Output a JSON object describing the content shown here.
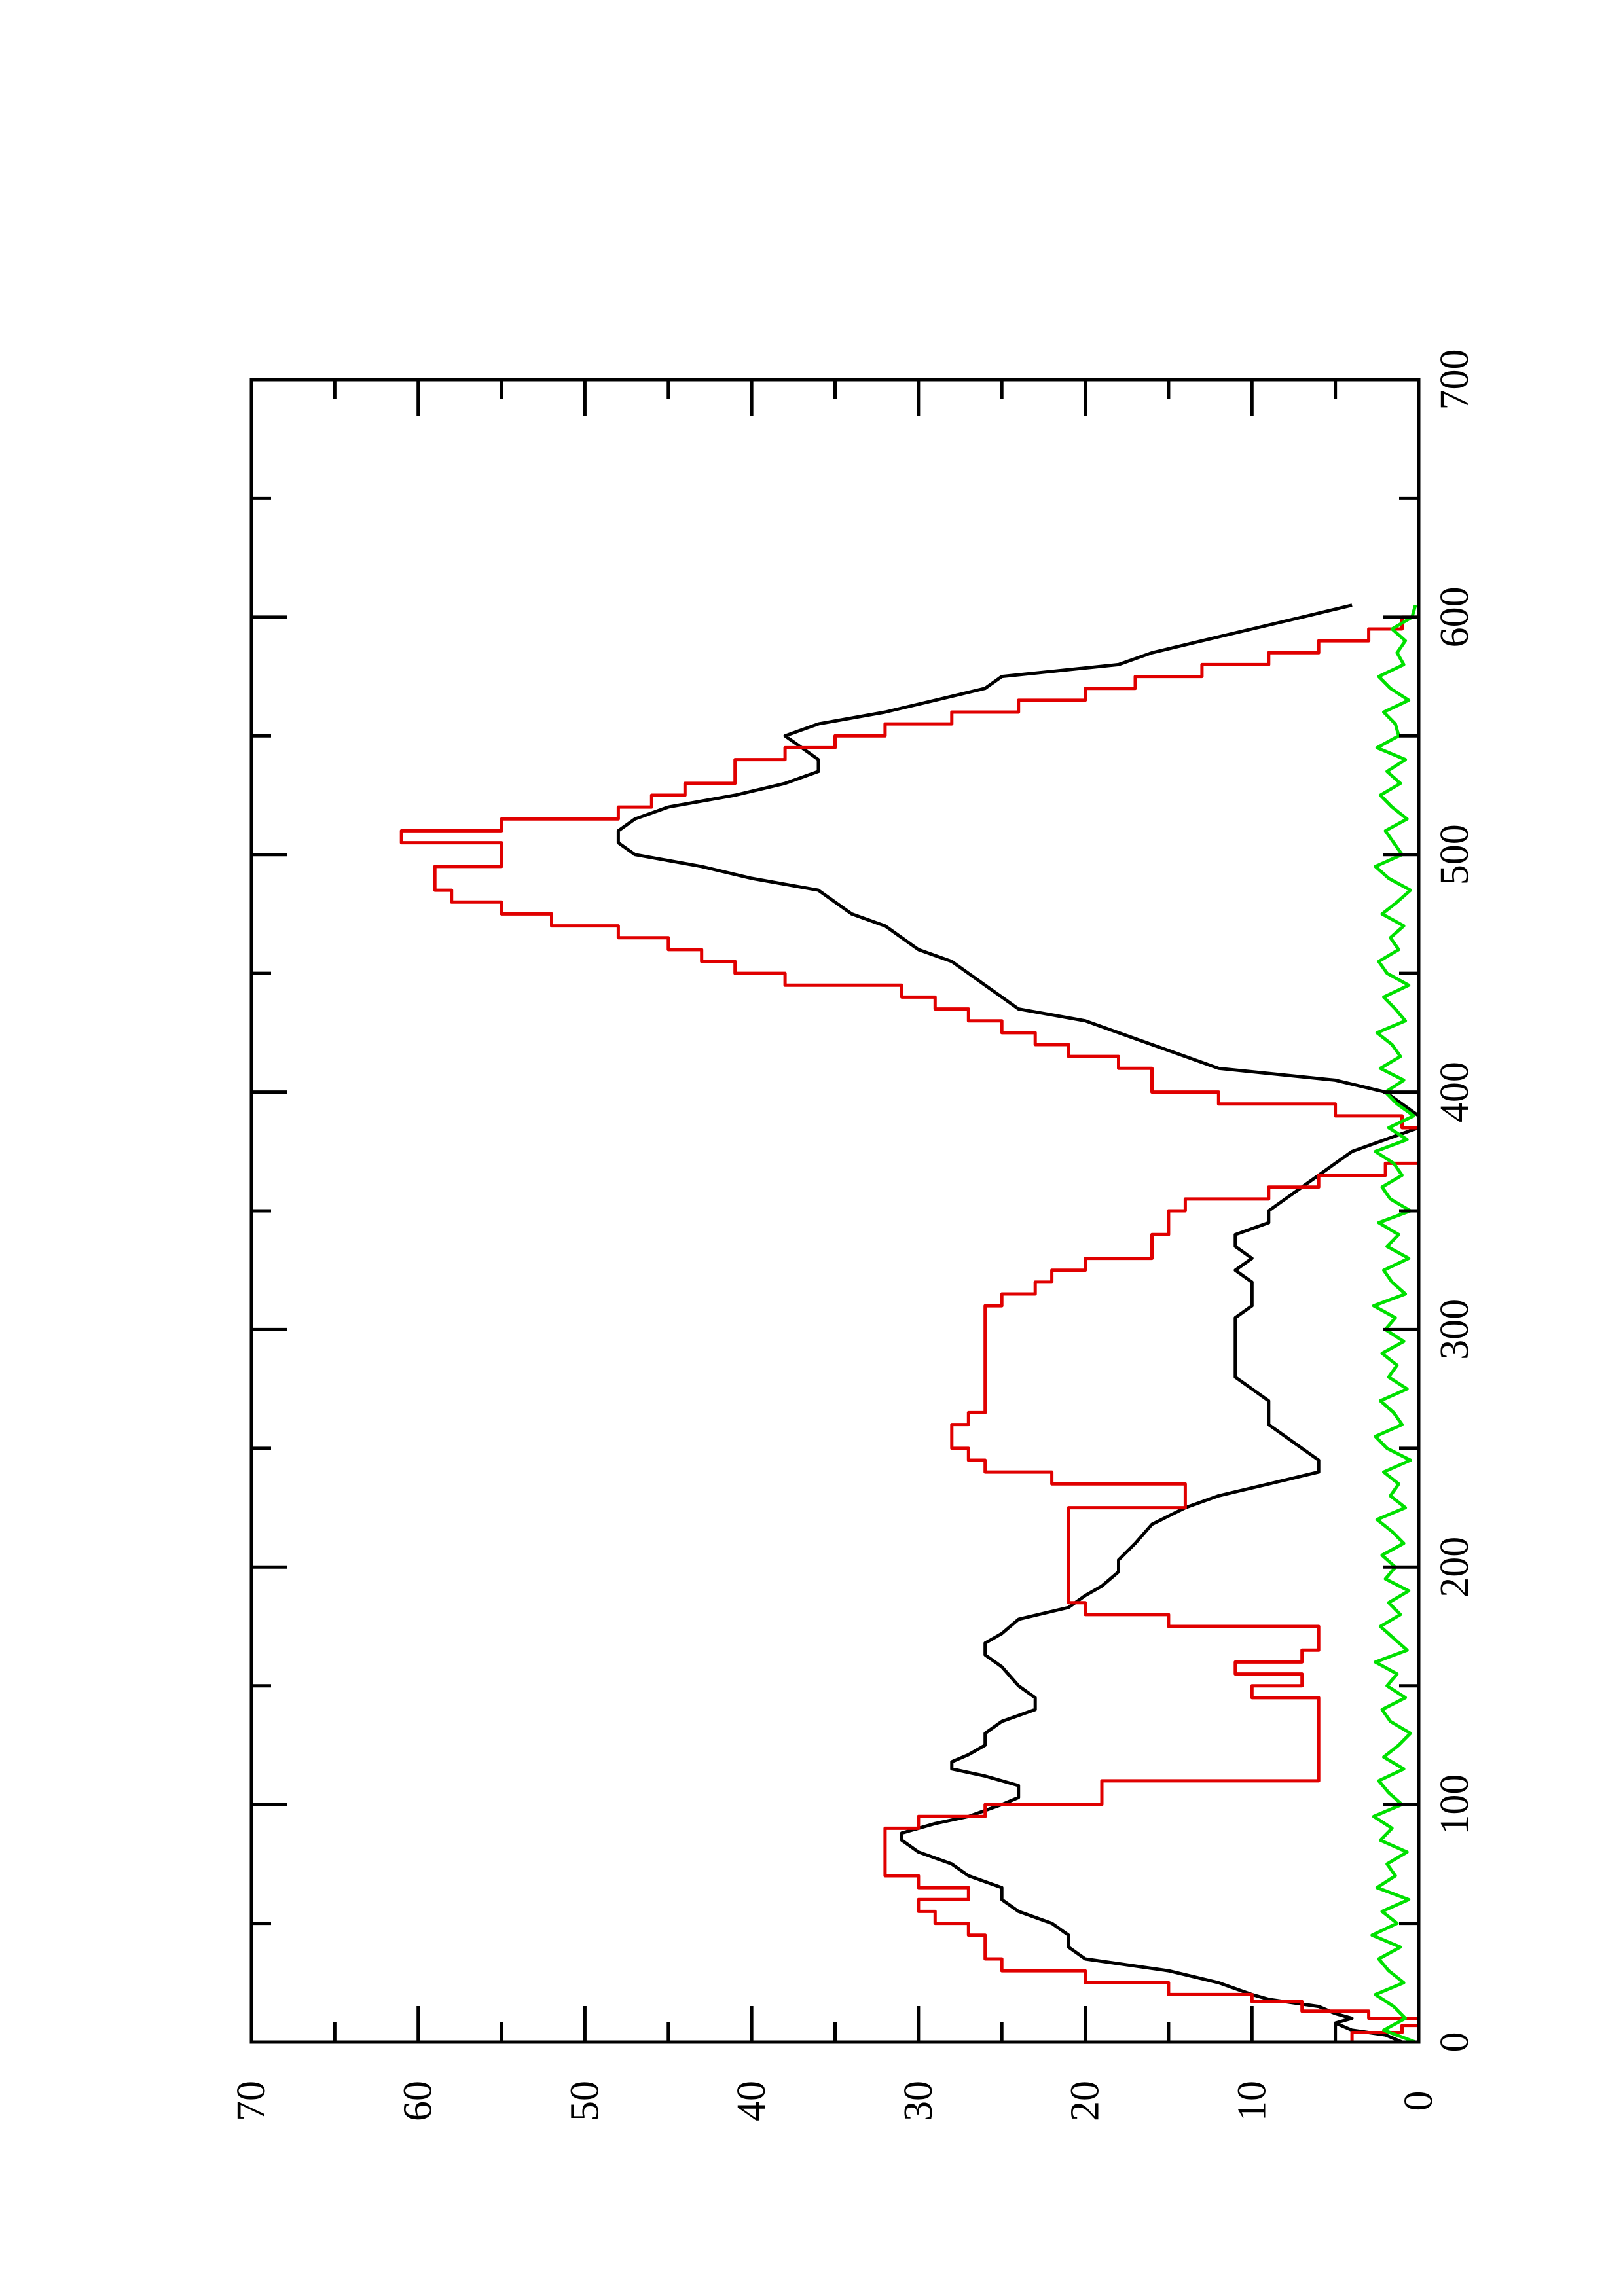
{
  "chart_data": {
    "type": "line",
    "orientation": "rotated-90-ccw",
    "title": "",
    "xlabel": "",
    "ylabel": "",
    "xlim": [
      0,
      700
    ],
    "ylim": [
      0,
      70
    ],
    "x_ticks": [
      0,
      100,
      200,
      300,
      400,
      500,
      600,
      700
    ],
    "x_tick_labels": [
      "0",
      "100",
      "200",
      "300",
      "400",
      "500",
      "600",
      "700"
    ],
    "x_minor_ticks": [
      50,
      150,
      250,
      350,
      450,
      550,
      650
    ],
    "y_ticks": [
      0,
      10,
      20,
      30,
      40,
      50,
      60,
      70
    ],
    "y_tick_labels": [
      "0",
      "10",
      "20",
      "30",
      "40",
      "50",
      "60",
      "70"
    ],
    "y_minor_ticks": [
      5,
      15,
      25,
      35,
      45,
      55,
      65
    ],
    "grid": false,
    "legend": "none",
    "series": [
      {
        "color": "#000000",
        "style": "smooth",
        "x": [
          0,
          3,
          5,
          8,
          10,
          12,
          15,
          18,
          20,
          25,
          30,
          35,
          40,
          45,
          50,
          55,
          60,
          65,
          70,
          75,
          80,
          85,
          88,
          92,
          95,
          100,
          103,
          108,
          112,
          115,
          118,
          121,
          125,
          130,
          135,
          140,
          145,
          150,
          158,
          163,
          168,
          172,
          178,
          183,
          188,
          192,
          198,
          203,
          210,
          218,
          225,
          230,
          235,
          240,
          245,
          250,
          255,
          260,
          265,
          270,
          275,
          280,
          285,
          290,
          295,
          300,
          305,
          310,
          315,
          320,
          325,
          330,
          335,
          340,
          345,
          350,
          355,
          360,
          365,
          370,
          375,
          380,
          385,
          390,
          395,
          400,
          405,
          410,
          415,
          420,
          425,
          430,
          435,
          440,
          445,
          450,
          455,
          460,
          465,
          470,
          475,
          480,
          485,
          490,
          495,
          500,
          505,
          510,
          515,
          520,
          525,
          530,
          535,
          540,
          545,
          550,
          555,
          560,
          565,
          570,
          575,
          580,
          585,
          590,
          595,
          600,
          605
        ],
        "y": [
          1,
          2,
          4,
          5,
          4,
          5,
          6,
          9,
          10,
          12,
          15,
          20,
          21,
          21,
          22,
          24,
          25,
          25,
          27,
          28,
          30,
          31,
          31,
          29,
          27,
          25,
          24,
          24,
          26,
          28,
          28,
          27,
          26,
          26,
          25,
          23,
          23,
          24,
          25,
          26,
          26,
          25,
          24,
          21,
          20,
          19,
          18,
          18,
          17,
          16,
          14,
          12,
          9,
          6,
          6,
          7,
          8,
          9,
          9,
          9,
          10,
          11,
          11,
          11,
          11,
          11,
          11,
          10,
          10,
          10,
          11,
          10,
          11,
          11,
          9,
          9,
          8,
          7,
          6,
          5,
          4,
          2,
          0,
          0,
          1,
          2,
          5,
          12,
          14,
          16,
          18,
          20,
          24,
          25,
          26,
          27,
          28,
          30,
          31,
          32,
          34,
          35,
          36,
          40,
          43,
          47,
          48,
          48,
          47,
          45,
          41,
          38,
          36,
          36,
          37,
          38,
          36,
          32,
          29,
          26,
          25,
          18,
          16,
          13,
          10,
          7,
          4
        ]
      },
      {
        "color": "#e00000",
        "style": "step",
        "x": [
          0,
          4,
          7,
          10,
          13,
          17,
          20,
          25,
          30,
          35,
          40,
          45,
          50,
          55,
          60,
          65,
          70,
          75,
          80,
          85,
          90,
          95,
          100,
          110,
          120,
          125,
          140,
          145,
          150,
          155,
          160,
          165,
          170,
          175,
          180,
          185,
          190,
          200,
          215,
          225,
          230,
          235,
          240,
          245,
          250,
          255,
          260,
          265,
          270,
          275,
          280,
          285,
          290,
          295,
          300,
          305,
          310,
          315,
          320,
          325,
          330,
          335,
          340,
          345,
          350,
          355,
          360,
          365,
          370,
          375,
          380,
          385,
          390,
          395,
          400,
          405,
          410,
          415,
          420,
          425,
          430,
          435,
          440,
          445,
          450,
          455,
          460,
          465,
          470,
          475,
          480,
          485,
          490,
          495,
          500,
          505,
          510,
          515,
          520,
          525,
          530,
          535,
          540,
          545,
          550,
          555,
          560,
          565,
          570,
          575,
          580,
          585,
          590,
          595,
          600,
          605
        ],
        "y": [
          1,
          4,
          1,
          0,
          3,
          7,
          10,
          15,
          20,
          25,
          26,
          26,
          27,
          29,
          30,
          27,
          30,
          32,
          32,
          32,
          32,
          30,
          26,
          19,
          6,
          6,
          6,
          6,
          10,
          7,
          11,
          7,
          6,
          6,
          15,
          20,
          21,
          21,
          21,
          21,
          14,
          14,
          22,
          26,
          27,
          28,
          28,
          27,
          26,
          26,
          26,
          26,
          26,
          26,
          26,
          26,
          26,
          25,
          23,
          22,
          20,
          16,
          16,
          15,
          15,
          14,
          9,
          6,
          2,
          0,
          0,
          0,
          1,
          5,
          12,
          16,
          16,
          18,
          21,
          23,
          25,
          27,
          29,
          31,
          38,
          41,
          43,
          45,
          48,
          52,
          55,
          58,
          59,
          59,
          55,
          55,
          61,
          55,
          48,
          46,
          44,
          41,
          41,
          38,
          35,
          32,
          28,
          24,
          20,
          17,
          13,
          9,
          6,
          3,
          1,
          0
        ]
      },
      {
        "color": "#00e000",
        "style": "noise",
        "x": [
          0,
          5,
          10,
          15,
          20,
          25,
          30,
          35,
          40,
          45,
          50,
          55,
          60,
          65,
          70,
          75,
          80,
          85,
          90,
          95,
          100,
          105,
          110,
          115,
          120,
          125,
          130,
          135,
          140,
          145,
          150,
          155,
          160,
          165,
          170,
          175,
          180,
          185,
          190,
          195,
          200,
          205,
          210,
          215,
          220,
          225,
          230,
          235,
          240,
          245,
          250,
          255,
          260,
          265,
          270,
          275,
          280,
          285,
          290,
          295,
          300,
          305,
          310,
          315,
          320,
          325,
          330,
          335,
          340,
          345,
          350,
          355,
          360,
          365,
          370,
          375,
          380,
          385,
          390,
          395,
          400,
          405,
          410,
          415,
          420,
          425,
          430,
          435,
          440,
          445,
          450,
          455,
          460,
          465,
          470,
          475,
          480,
          485,
          490,
          495,
          500,
          505,
          510,
          515,
          520,
          525,
          530,
          535,
          540,
          545,
          550,
          555,
          560,
          565,
          570,
          575,
          580,
          585,
          590,
          595,
          600,
          605
        ],
        "y": [
          0.2,
          2.1,
          0.8,
          1.5,
          2.6,
          0.9,
          1.8,
          2.4,
          1.1,
          2.8,
          1.3,
          2.2,
          0.6,
          2.5,
          1.4,
          1.9,
          0.7,
          2.3,
          1.6,
          2.7,
          1.0,
          1.8,
          2.4,
          0.9,
          2.1,
          1.2,
          0.5,
          1.7,
          2.2,
          0.8,
          1.9,
          1.3,
          2.6,
          0.7,
          1.5,
          2.3,
          1.1,
          1.8,
          0.6,
          2.0,
          1.4,
          2.2,
          0.9,
          1.6,
          2.5,
          0.8,
          1.7,
          1.2,
          2.1,
          0.5,
          1.9,
          2.6,
          1.0,
          1.5,
          2.3,
          0.7,
          1.8,
          1.3,
          2.2,
          0.9,
          2.0,
          1.4,
          2.7,
          0.8,
          1.6,
          2.1,
          0.6,
          1.9,
          1.2,
          2.4,
          0.5,
          1.7,
          2.2,
          1.0,
          1.5,
          2.6,
          0.7,
          1.8,
          0.3,
          1.3,
          2.0,
          0.9,
          2.3,
          1.1,
          1.6,
          2.5,
          0.8,
          1.4,
          2.1,
          0.6,
          1.9,
          2.4,
          1.2,
          1.7,
          0.9,
          2.2,
          1.3,
          0.5,
          1.8,
          2.6,
          1.0,
          1.5,
          2.0,
          0.7,
          1.6,
          2.3,
          1.1,
          1.9,
          0.8,
          2.5,
          1.2,
          1.4,
          2.1,
          0.6,
          1.7,
          2.4,
          0.9,
          1.3,
          0.8,
          1.6,
          0.4,
          0.2
        ]
      }
    ]
  }
}
